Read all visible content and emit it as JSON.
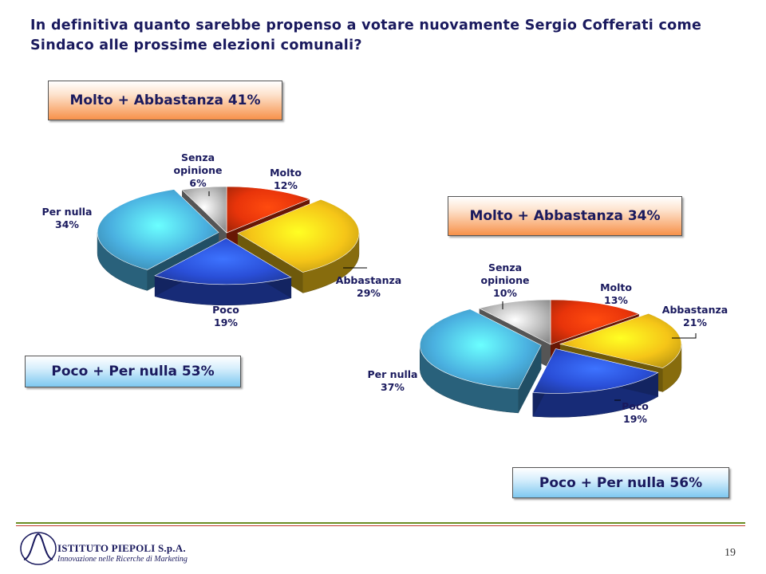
{
  "title": "In definitiva quanto sarebbe propenso a votare nuovamente Sergio Cofferati come Sindaco alle prossime elezioni comunali?",
  "boxes": {
    "left_top": "Molto + Abbastanza 41%",
    "left_bottom": "Poco + Per nulla 53%",
    "right_top": "Molto + Abbastanza 34%",
    "right_bottom": "Poco + Per nulla 56%"
  },
  "colors": {
    "molto": "#e8340a",
    "abbastanza": "#f5c518",
    "poco": "#2a4fd8",
    "per_nulla": "#4ab0e0",
    "senza_opinione": "#bdbdbd"
  },
  "chart_data": [
    {
      "type": "pie",
      "title": "",
      "categories": [
        "Molto",
        "Abbastanza",
        "Poco",
        "Per nulla",
        "Senza opinione"
      ],
      "values": [
        12,
        29,
        19,
        34,
        6
      ],
      "labels": [
        {
          "name": "Molto",
          "value": "12%"
        },
        {
          "name": "Abbastanza",
          "value": "29%"
        },
        {
          "name": "Poco",
          "value": "19%"
        },
        {
          "name": "Per nulla",
          "value": "34%"
        },
        {
          "name_lines": [
            "Senza",
            "opinione"
          ],
          "value": "6%"
        }
      ]
    },
    {
      "type": "pie",
      "title": "",
      "categories": [
        "Molto",
        "Abbastanza",
        "Poco",
        "Per nulla",
        "Senza opinione"
      ],
      "values": [
        13,
        21,
        19,
        37,
        10
      ],
      "labels": [
        {
          "name": "Molto",
          "value": "13%"
        },
        {
          "name": "Abbastanza",
          "value": "21%"
        },
        {
          "name": "Poco",
          "value": "19%"
        },
        {
          "name": "Per nulla",
          "value": "37%"
        },
        {
          "name_lines": [
            "Senza",
            "opinione"
          ],
          "value": "10%"
        }
      ]
    }
  ],
  "footer": {
    "logo_name": "ISTITUTO PIEPOLI S.p.A.",
    "logo_sub": "Innovazione nelle Ricerche di Marketing",
    "page_number": "19"
  }
}
